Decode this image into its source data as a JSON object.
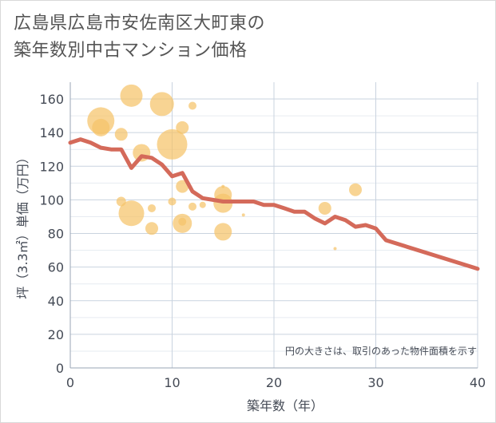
{
  "title_line1": "広島県広島市安佐南区大町東の",
  "title_line2": "築年数別中古マンション価格",
  "chart_data": {
    "type": "scatter",
    "title": "広島県広島市安佐南区大町東の築年数別中古マンション価格",
    "xlabel": "築年数（年）",
    "ylabel": "坪（3.3㎡）単価（万円）",
    "xlim": [
      0,
      40
    ],
    "ylim": [
      0,
      170
    ],
    "xticks": [
      "0",
      "10",
      "20",
      "30",
      "40"
    ],
    "yticks": [
      "0",
      "20",
      "40",
      "60",
      "80",
      "100",
      "120",
      "140",
      "160"
    ],
    "grid": true,
    "note": "円の大きさは、取引のあった物件面積を示す",
    "bubble_color": "#f5c46a",
    "line_color": "#d46a5a",
    "bubbles": [
      {
        "x": 3,
        "y": 147,
        "size": 17
      },
      {
        "x": 3,
        "y": 143,
        "size": 11
      },
      {
        "x": 5,
        "y": 139,
        "size": 8
      },
      {
        "x": 5,
        "y": 99,
        "size": 6
      },
      {
        "x": 6,
        "y": 162,
        "size": 14
      },
      {
        "x": 6,
        "y": 92,
        "size": 16
      },
      {
        "x": 7,
        "y": 128,
        "size": 11
      },
      {
        "x": 8,
        "y": 95,
        "size": 5
      },
      {
        "x": 8,
        "y": 83,
        "size": 8
      },
      {
        "x": 9,
        "y": 157,
        "size": 15
      },
      {
        "x": 10,
        "y": 133,
        "size": 19
      },
      {
        "x": 10,
        "y": 99,
        "size": 5
      },
      {
        "x": 11,
        "y": 143,
        "size": 8
      },
      {
        "x": 11,
        "y": 108,
        "size": 8
      },
      {
        "x": 11,
        "y": 87,
        "size": 5
      },
      {
        "x": 11,
        "y": 86,
        "size": 12
      },
      {
        "x": 12,
        "y": 156,
        "size": 5
      },
      {
        "x": 12,
        "y": 96,
        "size": 5
      },
      {
        "x": 13,
        "y": 97,
        "size": 4
      },
      {
        "x": 15,
        "y": 108,
        "size": 2
      },
      {
        "x": 15,
        "y": 103,
        "size": 11
      },
      {
        "x": 15,
        "y": 98,
        "size": 12
      },
      {
        "x": 15,
        "y": 81,
        "size": 11
      },
      {
        "x": 17,
        "y": 91,
        "size": 2
      },
      {
        "x": 25,
        "y": 95,
        "size": 8
      },
      {
        "x": 26,
        "y": 71,
        "size": 2
      },
      {
        "x": 28,
        "y": 106,
        "size": 8
      }
    ],
    "trend": {
      "x": [
        0,
        1,
        2,
        3,
        4,
        5,
        6,
        7,
        8,
        9,
        10,
        11,
        12,
        13,
        14,
        15,
        16,
        17,
        18,
        19,
        20,
        21,
        22,
        23,
        24,
        25,
        26,
        27,
        28,
        29,
        30,
        31,
        40
      ],
      "y": [
        134,
        136,
        134,
        131,
        130,
        130,
        119,
        126,
        125,
        121,
        114,
        116,
        105,
        101,
        100,
        99,
        99,
        99,
        99,
        97,
        97,
        95,
        93,
        93,
        89,
        86,
        90,
        88,
        84,
        85,
        83,
        76,
        59
      ]
    }
  }
}
